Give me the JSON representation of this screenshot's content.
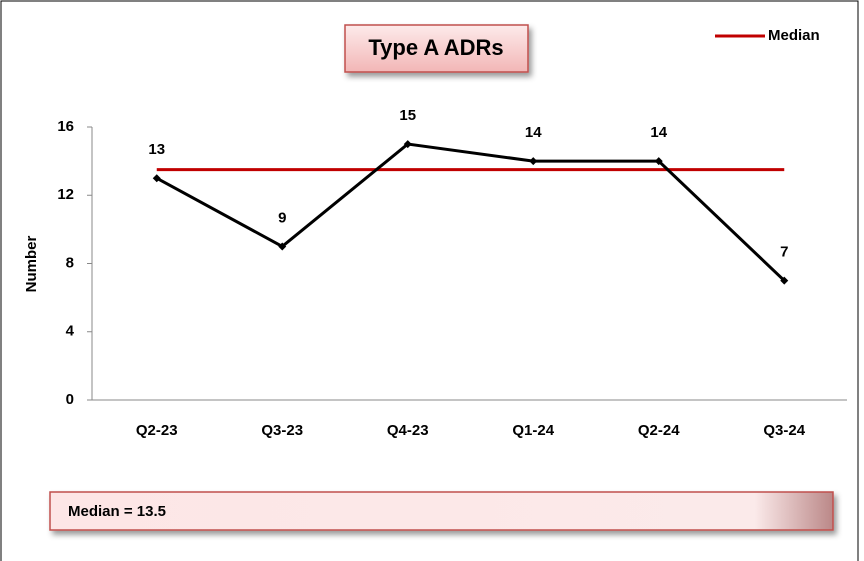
{
  "chart_data": {
    "type": "line",
    "title": "Type A ADRs",
    "y_label": "Number",
    "categories": [
      "Q2-23",
      "Q3-23",
      "Q4-23",
      "Q1-24",
      "Q2-24",
      "Q3-24"
    ],
    "values": [
      13,
      9,
      15,
      14,
      14,
      7
    ],
    "color": "#000000",
    "series": [
      {
        "name": "Median",
        "color": "#c00000",
        "values": [
          13.5,
          13.5,
          13.5,
          13.5,
          13.5,
          13.5
        ]
      }
    ],
    "ylim": [
      0,
      16
    ],
    "yticks": [
      0,
      4,
      8,
      12,
      16
    ],
    "grid": false,
    "legend": "top-right",
    "annotation": "Median = 13.5"
  }
}
